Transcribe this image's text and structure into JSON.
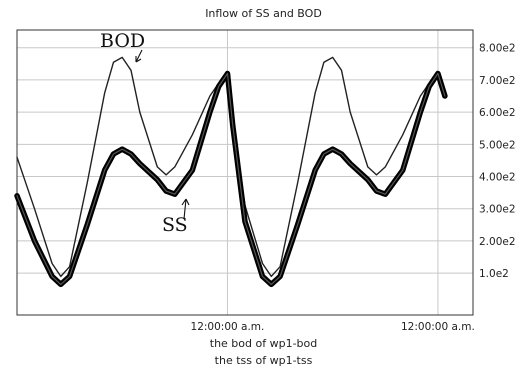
{
  "chart_data": {
    "type": "line",
    "title": "Inflow of SS and BOD",
    "y_ticks": [
      "1.0e2",
      "2.00e2",
      "3.00e2",
      "4.00e2",
      "5.00e2",
      "6.00e2",
      "7.00e2",
      "8.00e2"
    ],
    "y_values": [
      100,
      200,
      300,
      400,
      500,
      600,
      700,
      800
    ],
    "ylim": [
      -30,
      855
    ],
    "x_ticks": [
      {
        "label": "12:00:00 a.m.",
        "x": 24
      },
      {
        "label": "12:00:00 a.m.",
        "x": 48
      }
    ],
    "xlim": [
      0,
      52
    ],
    "grid": true,
    "annotations": [
      {
        "text": "BOD",
        "series": "BOD"
      },
      {
        "text": "SS",
        "series": "SS"
      }
    ],
    "legend": [
      "the bod of wp1-bod",
      "the tss of wp1-tss"
    ],
    "series": [
      {
        "name": "BOD",
        "x": [
          0,
          2,
          4,
          5,
          6,
          8,
          10,
          11,
          12,
          13,
          14,
          16,
          17,
          18,
          20,
          22,
          23,
          24,
          24.6,
          26,
          28,
          29,
          30,
          32,
          34,
          35,
          36,
          37,
          38,
          40,
          41,
          42,
          44,
          46,
          47,
          48,
          48.8
        ],
        "y": [
          460,
          300,
          130,
          90,
          120,
          380,
          660,
          755,
          770,
          730,
          600,
          430,
          405,
          430,
          530,
          650,
          690,
          720,
          560,
          310,
          130,
          90,
          120,
          380,
          660,
          755,
          770,
          730,
          600,
          430,
          405,
          430,
          530,
          650,
          690,
          720,
          650
        ]
      },
      {
        "name": "SS",
        "x": [
          0,
          2,
          4,
          5,
          6,
          8,
          10,
          11,
          12,
          13,
          14,
          16,
          17,
          18,
          20,
          22,
          23,
          24,
          24.6,
          26,
          28,
          29,
          30,
          32,
          34,
          35,
          36,
          37,
          38,
          40,
          41,
          42,
          44,
          46,
          47,
          48,
          48.8
        ],
        "y": [
          340,
          200,
          90,
          65,
          90,
          250,
          420,
          470,
          485,
          470,
          440,
          390,
          355,
          345,
          420,
          600,
          680,
          720,
          560,
          260,
          90,
          65,
          90,
          250,
          420,
          470,
          485,
          470,
          440,
          390,
          355,
          345,
          420,
          600,
          680,
          720,
          650
        ]
      }
    ]
  }
}
